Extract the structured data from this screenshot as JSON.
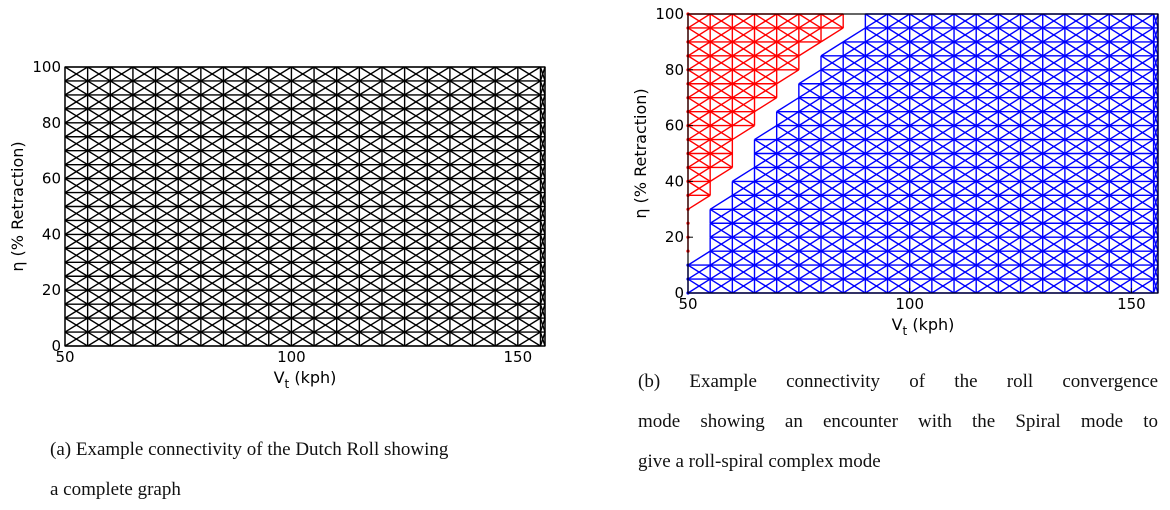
{
  "chart_data": [
    {
      "type": "graph",
      "panel": "a",
      "xlabel_main": "V",
      "xlabel_sub": "t",
      "xlabel_rest": " (kph)",
      "ylabel": "η (% Retraction)",
      "xlim": [
        50,
        156
      ],
      "ylim": [
        0,
        100
      ],
      "xticks": [
        50,
        100,
        150
      ],
      "yticks": [
        0,
        20,
        40,
        60,
        80,
        100
      ],
      "x_step": 5,
      "y_step": 5,
      "series": [
        {
          "color": "#000000",
          "boundary": "all"
        }
      ]
    },
    {
      "type": "graph",
      "panel": "b",
      "xlabel_main": "V",
      "xlabel_sub": "t",
      "xlabel_rest": " (kph)",
      "ylabel": "η (% Retraction)",
      "xlim": [
        50,
        156
      ],
      "ylim": [
        0,
        100
      ],
      "xticks": [
        50,
        100,
        150
      ],
      "yticks": [
        0,
        20,
        40,
        60,
        80,
        100
      ],
      "x_step": 5,
      "y_step": 5,
      "boundary_x": [
        50,
        55,
        60,
        65,
        70,
        75,
        80,
        85,
        90
      ],
      "boundary_y_max_blue": [
        10,
        30,
        40,
        55,
        65,
        75,
        85,
        90,
        100
      ],
      "series": [
        {
          "color": "#ff0000",
          "region": "above-boundary"
        },
        {
          "color": "#0000ff",
          "region": "below-boundary"
        }
      ]
    }
  ],
  "captions": {
    "a_line1": "(a) Example connectivity of the Dutch Roll showing",
    "a_line2": "a complete graph",
    "b_line1": "(b) Example connectivity of the roll convergence",
    "b_line2": "mode showing an encounter with the Spiral mode to",
    "b_line3": "give a roll-spiral complex mode"
  }
}
